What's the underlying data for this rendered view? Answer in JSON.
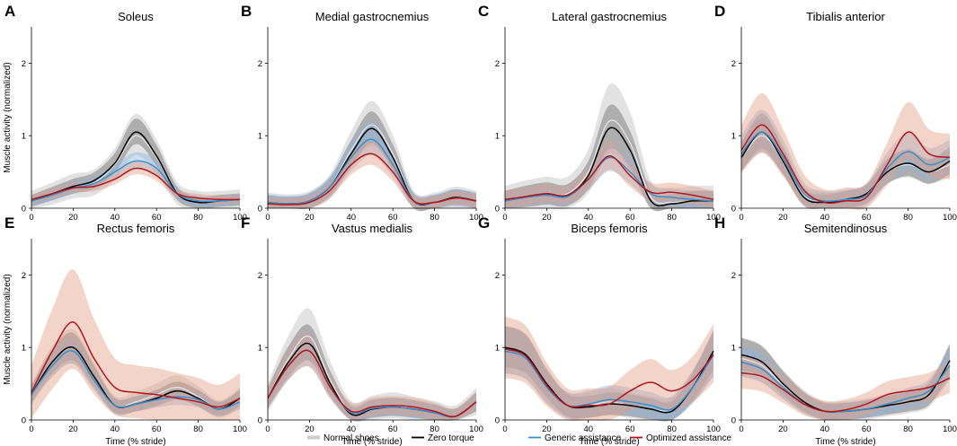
{
  "chart_data": {
    "type": "line",
    "shared": {
      "xlabel": "Time (% stride)",
      "ylabel": "Muscle activity (normalized)",
      "xlim": [
        0,
        100
      ],
      "ylim": [
        0,
        2.5
      ],
      "xticks": [
        "0",
        "20",
        "40",
        "60",
        "80",
        "100"
      ],
      "yticks": [
        "0",
        "1",
        "2"
      ]
    },
    "legend": {
      "placement": "bottom-right",
      "entries": [
        {
          "key": "normal",
          "label": "Normal shoes",
          "color": "#cccccc"
        },
        {
          "key": "zero",
          "label": "Zero torque",
          "color": "#000000"
        },
        {
          "key": "generic",
          "label": "Generic assistance",
          "color": "#3a8fc9"
        },
        {
          "key": "optimized",
          "label": "Optimized assistance",
          "color": "#b4141c"
        }
      ]
    },
    "band_colors": {
      "normal": "#bfbfbf",
      "zero": "#6e6e6e",
      "generic": "#8fb6e0",
      "optimized": "#e4a088"
    },
    "x": [
      0,
      10,
      20,
      30,
      40,
      50,
      60,
      70,
      80,
      90,
      100
    ],
    "panels": [
      {
        "letter": "A",
        "title": "Soleus",
        "series": {
          "zero": [
            0.1,
            0.2,
            0.3,
            0.38,
            0.62,
            1.05,
            0.72,
            0.2,
            0.08,
            0.1,
            0.12
          ],
          "generic": [
            0.1,
            0.18,
            0.28,
            0.34,
            0.5,
            0.65,
            0.55,
            0.2,
            0.1,
            0.1,
            0.12
          ],
          "optimized": [
            0.12,
            0.2,
            0.28,
            0.3,
            0.4,
            0.55,
            0.45,
            0.2,
            0.14,
            0.12,
            0.12
          ],
          "normal": [
            0.1,
            0.2,
            0.3,
            0.35,
            0.6,
            1.0,
            0.7,
            0.2,
            0.1,
            0.1,
            0.12
          ]
        },
        "band_width": {
          "zero": 0.18,
          "generic": 0.15,
          "optimized": 0.12,
          "normal": 0.3
        }
      },
      {
        "letter": "B",
        "title": "Medial gastrocnemius",
        "series": {
          "zero": [
            0.08,
            0.06,
            0.1,
            0.3,
            0.75,
            1.1,
            0.7,
            0.1,
            0.08,
            0.15,
            0.1
          ],
          "generic": [
            0.08,
            0.06,
            0.1,
            0.3,
            0.7,
            0.95,
            0.6,
            0.1,
            0.08,
            0.14,
            0.1
          ],
          "optimized": [
            0.06,
            0.05,
            0.08,
            0.25,
            0.6,
            0.75,
            0.5,
            0.1,
            0.08,
            0.14,
            0.1
          ],
          "normal": [
            0.08,
            0.06,
            0.1,
            0.3,
            0.8,
            1.15,
            0.75,
            0.1,
            0.08,
            0.15,
            0.1
          ]
        },
        "band_width": {
          "zero": 0.22,
          "generic": 0.25,
          "optimized": 0.2,
          "normal": 0.3
        }
      },
      {
        "letter": "C",
        "title": "Lateral gastrocnemius",
        "series": {
          "zero": [
            0.1,
            0.16,
            0.2,
            0.18,
            0.45,
            1.1,
            0.8,
            0.1,
            0.06,
            0.1,
            0.1
          ],
          "generic": [
            0.1,
            0.15,
            0.18,
            0.16,
            0.4,
            0.7,
            0.5,
            0.2,
            0.15,
            0.12,
            0.1
          ],
          "optimized": [
            0.12,
            0.16,
            0.2,
            0.18,
            0.4,
            0.72,
            0.45,
            0.22,
            0.22,
            0.18,
            0.12
          ],
          "normal": [
            0.1,
            0.16,
            0.2,
            0.2,
            0.5,
            1.2,
            0.9,
            0.15,
            0.08,
            0.1,
            0.1
          ]
        },
        "band_width": {
          "zero": 0.3,
          "generic": 0.25,
          "optimized": 0.25,
          "normal": 0.45
        }
      },
      {
        "letter": "D",
        "title": "Tibialis anterior",
        "series": {
          "zero": [
            0.7,
            1.05,
            0.65,
            0.15,
            0.08,
            0.12,
            0.2,
            0.5,
            0.62,
            0.5,
            0.65
          ],
          "generic": [
            0.75,
            1.05,
            0.7,
            0.2,
            0.1,
            0.12,
            0.18,
            0.55,
            0.78,
            0.6,
            0.7
          ],
          "optimized": [
            0.8,
            1.15,
            0.75,
            0.25,
            0.08,
            0.1,
            0.15,
            0.6,
            1.05,
            0.75,
            0.7
          ],
          "normal": [
            0.7,
            1.0,
            0.65,
            0.18,
            0.1,
            0.12,
            0.18,
            0.5,
            0.6,
            0.5,
            0.6
          ]
        },
        "band_width": {
          "zero": 0.25,
          "generic": 0.3,
          "optimized": 0.4,
          "normal": 0.25
        }
      },
      {
        "letter": "E",
        "title": "Rectus femoris",
        "series": {
          "zero": [
            0.35,
            0.8,
            1.0,
            0.6,
            0.2,
            0.22,
            0.3,
            0.4,
            0.3,
            0.15,
            0.3
          ],
          "generic": [
            0.35,
            0.75,
            0.95,
            0.55,
            0.2,
            0.22,
            0.28,
            0.32,
            0.28,
            0.15,
            0.25
          ],
          "optimized": [
            0.38,
            0.95,
            1.35,
            0.85,
            0.45,
            0.38,
            0.35,
            0.3,
            0.25,
            0.18,
            0.3
          ],
          "normal": [
            0.35,
            0.8,
            1.0,
            0.6,
            0.2,
            0.25,
            0.35,
            0.45,
            0.32,
            0.15,
            0.3
          ]
        },
        "band_width": {
          "zero": 0.2,
          "generic": 0.2,
          "optimized": 0.6,
          "normal": 0.25
        }
      },
      {
        "letter": "F",
        "title": "Vastus medialis",
        "series": {
          "zero": [
            0.3,
            0.8,
            1.05,
            0.5,
            0.08,
            0.15,
            0.18,
            0.15,
            0.1,
            0.05,
            0.25
          ],
          "generic": [
            0.3,
            0.75,
            0.95,
            0.45,
            0.1,
            0.16,
            0.18,
            0.15,
            0.1,
            0.05,
            0.25
          ],
          "optimized": [
            0.3,
            0.75,
            0.95,
            0.45,
            0.12,
            0.18,
            0.2,
            0.18,
            0.12,
            0.05,
            0.25
          ],
          "normal": [
            0.3,
            0.85,
            1.15,
            0.55,
            0.1,
            0.16,
            0.2,
            0.15,
            0.1,
            0.05,
            0.25
          ]
        },
        "band_width": {
          "zero": 0.25,
          "generic": 0.25,
          "optimized": 0.25,
          "normal": 0.35
        }
      },
      {
        "letter": "G",
        "title": "Biceps femoris",
        "series": {
          "zero": [
            1.0,
            0.9,
            0.5,
            0.2,
            0.18,
            0.22,
            0.2,
            0.15,
            0.12,
            0.45,
            0.95
          ],
          "generic": [
            0.95,
            0.85,
            0.45,
            0.2,
            0.22,
            0.28,
            0.25,
            0.2,
            0.15,
            0.45,
            0.9
          ],
          "optimized": [
            0.98,
            0.88,
            0.48,
            0.2,
            0.2,
            0.22,
            0.4,
            0.52,
            0.4,
            0.55,
            0.9
          ],
          "normal": [
            0.95,
            0.85,
            0.45,
            0.2,
            0.2,
            0.25,
            0.2,
            0.15,
            0.15,
            0.45,
            0.9
          ]
        },
        "band_width": {
          "zero": 0.3,
          "generic": 0.35,
          "optimized": 0.45,
          "normal": 0.35
        }
      },
      {
        "letter": "H",
        "title": "Semitendinosus",
        "series": {
          "zero": [
            0.9,
            0.8,
            0.5,
            0.25,
            0.12,
            0.12,
            0.15,
            0.2,
            0.25,
            0.35,
            0.82
          ],
          "generic": [
            0.8,
            0.7,
            0.45,
            0.22,
            0.12,
            0.12,
            0.15,
            0.22,
            0.3,
            0.4,
            0.75
          ],
          "optimized": [
            0.65,
            0.6,
            0.42,
            0.22,
            0.12,
            0.14,
            0.22,
            0.35,
            0.4,
            0.45,
            0.58
          ],
          "normal": [
            0.85,
            0.75,
            0.48,
            0.25,
            0.12,
            0.12,
            0.15,
            0.2,
            0.25,
            0.35,
            0.8
          ]
        },
        "band_width": {
          "zero": 0.25,
          "generic": 0.25,
          "optimized": 0.3,
          "normal": 0.3
        }
      }
    ]
  }
}
